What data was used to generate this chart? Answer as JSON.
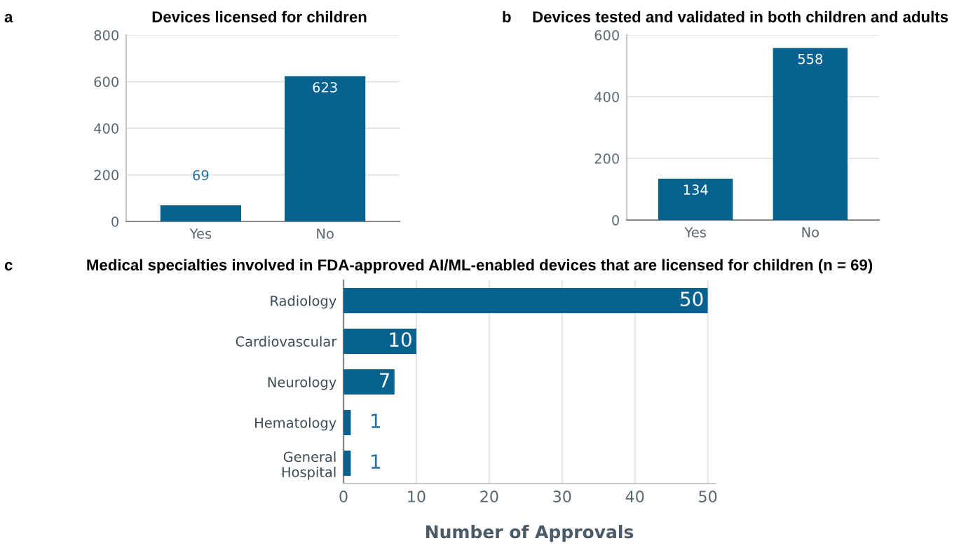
{
  "chart_data": [
    {
      "type": "bar",
      "title": "Devices licensed for children",
      "annotations": [
        "a"
      ],
      "categories": [
        "Yes",
        "No"
      ],
      "values": [
        69,
        623
      ],
      "color": "#08628f",
      "ylim": [
        0,
        800
      ],
      "yticks": [
        0,
        200,
        400,
        600,
        800
      ],
      "grid": "y",
      "data_labels": true
    },
    {
      "type": "bar",
      "title": "Devices tested and validated in both children and adults",
      "annotations": [
        "b"
      ],
      "categories": [
        "Yes",
        "No"
      ],
      "values": [
        134,
        558
      ],
      "color": "#08628f",
      "ylim": [
        0,
        600
      ],
      "yticks": [
        0,
        200,
        400,
        600
      ],
      "grid": "y",
      "data_labels": true
    },
    {
      "type": "bar",
      "orientation": "horizontal",
      "title": "Medical specialties involved in FDA-approved AI/ML-enabled devices that are licensed for children (n = 69)",
      "annotations": [
        "c"
      ],
      "xlabel": "Number of Approvals",
      "categories": [
        "Radiology",
        "Cardiovascular",
        "Neurology",
        "Hematology",
        "General\nHospital"
      ],
      "values": [
        50,
        10,
        7,
        1,
        1
      ],
      "color": "#08628f",
      "xlim": [
        0,
        51
      ],
      "xticks": [
        0,
        10,
        20,
        30,
        40,
        50
      ],
      "grid": "x",
      "data_labels": true
    }
  ]
}
